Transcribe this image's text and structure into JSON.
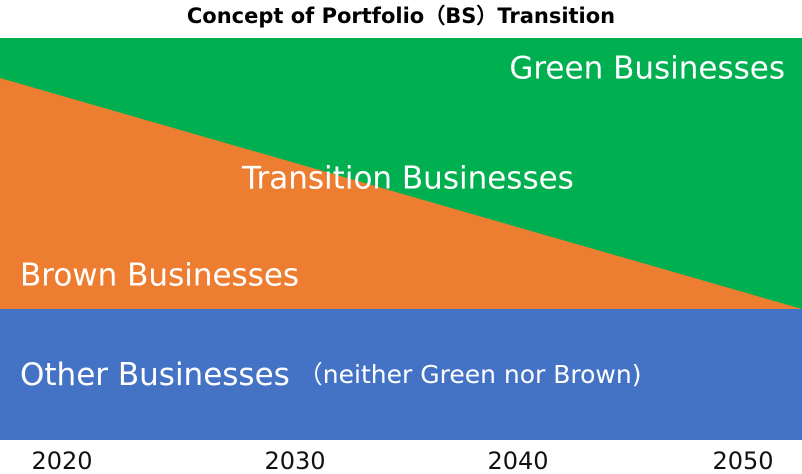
{
  "title": "Concept of Portfolio（BS）Transition",
  "regions": {
    "green": "Green Businesses",
    "transition": "Transition Businesses",
    "brown": "Brown Businesses",
    "other": "Other Businesses",
    "other_note": "（neither Green nor Brown)"
  },
  "years": [
    "2020",
    "2030",
    "2040",
    "2050"
  ]
}
